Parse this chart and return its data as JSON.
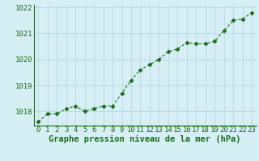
{
  "x": [
    0,
    1,
    2,
    3,
    4,
    5,
    6,
    7,
    8,
    9,
    10,
    11,
    12,
    13,
    14,
    15,
    16,
    17,
    18,
    19,
    20,
    21,
    22,
    23
  ],
  "y": [
    1017.6,
    1017.9,
    1017.9,
    1018.1,
    1018.2,
    1018.0,
    1018.1,
    1018.2,
    1018.2,
    1018.7,
    1019.2,
    1019.6,
    1019.8,
    1020.0,
    1020.3,
    1020.4,
    1020.65,
    1020.6,
    1020.6,
    1020.7,
    1021.1,
    1021.5,
    1021.55,
    1021.8
  ],
  "line_color": "#1a6b1a",
  "marker": "D",
  "marker_size": 2.5,
  "background_color": "#d6eff5",
  "grid_color": "#b8d8e0",
  "xlabel": "Graphe pression niveau de la mer (hPa)",
  "xlabel_color": "#1a6b1a",
  "tick_color": "#1a6b1a",
  "ylim": [
    1017.45,
    1022.1
  ],
  "xlim": [
    -0.5,
    23.5
  ],
  "yticks": [
    1018,
    1019,
    1020,
    1021,
    1022
  ],
  "xticks": [
    0,
    1,
    2,
    3,
    4,
    5,
    6,
    7,
    8,
    9,
    10,
    11,
    12,
    13,
    14,
    15,
    16,
    17,
    18,
    19,
    20,
    21,
    22,
    23
  ],
  "tick_fontsize": 6.5,
  "xlabel_fontsize": 7.5
}
